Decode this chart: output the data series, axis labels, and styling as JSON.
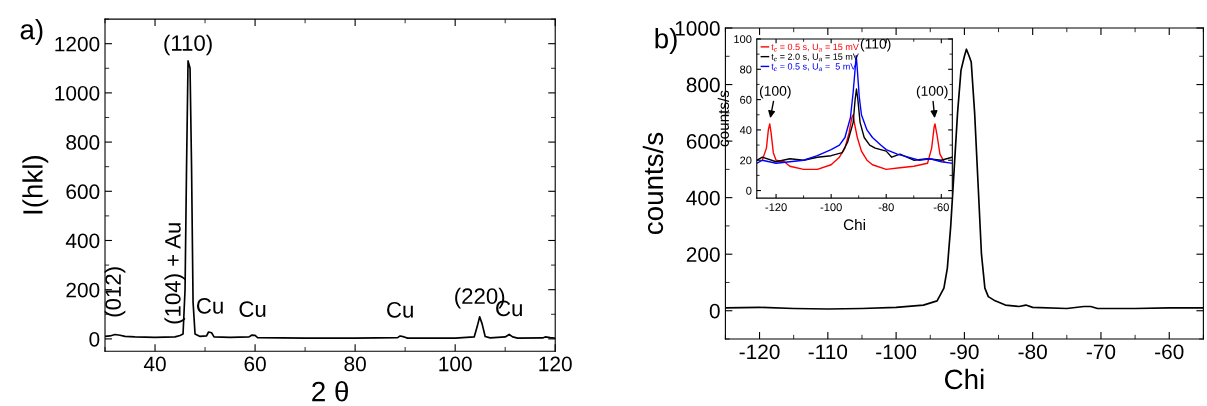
{
  "chart_data": [
    {
      "type": "line",
      "title": "a)",
      "xlabel": "2 θ",
      "ylabel": "I(hkl)",
      "xlim": [
        30,
        120
      ],
      "ylim": [
        -50,
        1300
      ],
      "xticks": [
        40,
        60,
        80,
        100,
        120
      ],
      "yticks": [
        0,
        200,
        400,
        600,
        800,
        1000,
        1200
      ],
      "grid": false,
      "legend": false,
      "marker": "none",
      "line_style": "solid",
      "series": [
        {
          "color": "#000000",
          "x": [
            30,
            31,
            32,
            33,
            34,
            36,
            40,
            44,
            45,
            45.6,
            46,
            46.3,
            46.6,
            47,
            47.3,
            47.6,
            48,
            49,
            50.3,
            50.7,
            51.3,
            51.8,
            55,
            58.8,
            59.3,
            60,
            60.5,
            70,
            80,
            88.5,
            89,
            89.8,
            90.5,
            100,
            103.8,
            104.4,
            104.9,
            105.4,
            106,
            107,
            110,
            110.8,
            111.5,
            112.5,
            117.5,
            118,
            119,
            120
          ],
          "values": [
            10,
            12,
            18,
            15,
            10,
            8,
            6,
            8,
            14,
            20,
            200,
            700,
            1130,
            1100,
            700,
            150,
            20,
            10,
            12,
            28,
            25,
            8,
            6,
            8,
            15,
            14,
            5,
            3,
            3,
            5,
            12,
            8,
            3,
            3,
            8,
            50,
            90,
            60,
            10,
            4,
            8,
            18,
            8,
            3,
            4,
            8,
            5,
            3
          ]
        }
      ],
      "annotations": [
        {
          "text": "(012)",
          "x": 32,
          "y": 18
        },
        {
          "text": "(104) + Au",
          "x": 44.5,
          "y": 12
        },
        {
          "text": "(110)",
          "x": 46.6,
          "y": 1130
        },
        {
          "text": "Cu",
          "x": 51,
          "y": 28
        },
        {
          "text": "Cu",
          "x": 59.5,
          "y": 15
        },
        {
          "text": "Cu",
          "x": 89,
          "y": 12
        },
        {
          "text": "(220)",
          "x": 104.9,
          "y": 90
        },
        {
          "text": "Cu",
          "x": 110.8,
          "y": 18
        }
      ]
    },
    {
      "type": "line",
      "title": "b)",
      "xlabel": "Chi",
      "ylabel": "counts/s",
      "xlim": [
        -125,
        -55
      ],
      "ylim": [
        -100,
        1000
      ],
      "xticks": [
        -120,
        -110,
        -100,
        -90,
        -80,
        -70,
        -60
      ],
      "yticks": [
        0,
        200,
        400,
        600,
        800,
        1000
      ],
      "grid": false,
      "legend": false,
      "marker": "none",
      "line_style": "solid",
      "series": [
        {
          "color": "#000000",
          "x": [
            -125,
            -120,
            -115,
            -110,
            -105,
            -100,
            -96,
            -94,
            -93,
            -92.5,
            -92,
            -91.5,
            -91,
            -90.5,
            -90,
            -89.7,
            -89.3,
            -89,
            -88.5,
            -88,
            -87.5,
            -87,
            -86.5,
            -85.5,
            -84,
            -82,
            -81,
            -80,
            -75,
            -72.5,
            -71.5,
            -70.5,
            -65,
            -60,
            -55
          ],
          "values": [
            10,
            12,
            8,
            6,
            8,
            12,
            20,
            35,
            80,
            150,
            300,
            500,
            700,
            850,
            900,
            925,
            900,
            880,
            700,
            450,
            200,
            80,
            50,
            35,
            20,
            15,
            20,
            12,
            8,
            15,
            15,
            8,
            8,
            10,
            10
          ]
        }
      ]
    },
    {
      "type": "line",
      "xlabel": "Chi",
      "ylabel": "counts/s",
      "xlim": [
        -127,
        -56
      ],
      "ylim": [
        -5,
        100
      ],
      "xticks": [
        -120,
        -100,
        -80,
        -60
      ],
      "yticks": [
        0,
        20,
        40,
        60,
        80,
        100
      ],
      "grid": false,
      "legend": "top left",
      "marker": "none",
      "line_style": "solid",
      "series": [
        {
          "name": "t$_{c}$ = 0.5 s, U$_{a}$ = 15 mV",
          "color": "#ff0000",
          "x": [
            -125,
            -123.5,
            -122.8,
            -122.3,
            -121.8,
            -121,
            -120,
            -117,
            -115,
            -110,
            -105,
            -100,
            -97,
            -95,
            -93.5,
            -92.5,
            -92,
            -91.5,
            -90.5,
            -89,
            -87,
            -85,
            -80,
            -75,
            -70,
            -65,
            -63.5,
            -62.6,
            -62.3,
            -61.5,
            -60.5,
            -59
          ],
          "values": [
            20,
            28,
            40,
            44,
            38,
            25,
            20,
            19,
            16,
            14,
            14,
            17,
            22,
            28,
            38,
            48,
            50,
            44,
            35,
            26,
            20,
            17,
            14,
            15,
            16,
            18,
            28,
            42,
            44,
            36,
            24,
            19
          ]
        },
        {
          "name": "t$_{c}$ = 2.0 s, U$_{a}$ = 15 mV",
          "color": "#000000",
          "x": [
            -127,
            -125,
            -120,
            -115,
            -110,
            -105,
            -100,
            -96,
            -94,
            -92,
            -91.3,
            -90.8,
            -90.3,
            -89.5,
            -88,
            -86,
            -84,
            -80,
            -78,
            -75,
            -70,
            -65,
            -60,
            -56
          ],
          "values": [
            20,
            22,
            19,
            21,
            20,
            22,
            23,
            25,
            32,
            45,
            60,
            67,
            60,
            45,
            35,
            30,
            28,
            26,
            22,
            24,
            20,
            21,
            20,
            22
          ]
        },
        {
          "name": "t$_{c}$ = 0.5 s, U$_{a}$ =  5 mV",
          "color": "#0000ff",
          "x": [
            -127,
            -125,
            -120,
            -115,
            -110,
            -105,
            -100,
            -97,
            -95,
            -93,
            -92,
            -91.3,
            -90.9,
            -90.5,
            -89.8,
            -89,
            -87,
            -85,
            -82,
            -80,
            -76,
            -72,
            -68,
            -64,
            -60,
            -56
          ],
          "values": [
            18,
            20,
            18,
            19,
            20,
            23,
            27,
            30,
            35,
            48,
            65,
            80,
            89,
            80,
            62,
            50,
            40,
            35,
            30,
            27,
            24,
            22,
            20,
            21,
            19,
            18
          ]
        }
      ],
      "annotations": [
        {
          "text": "(100)",
          "x": -122.3,
          "y": 46
        },
        {
          "text": "(110)",
          "x": -90.9,
          "y": 89
        },
        {
          "text": "(100)",
          "x": -62.3,
          "y": 46
        }
      ]
    }
  ]
}
